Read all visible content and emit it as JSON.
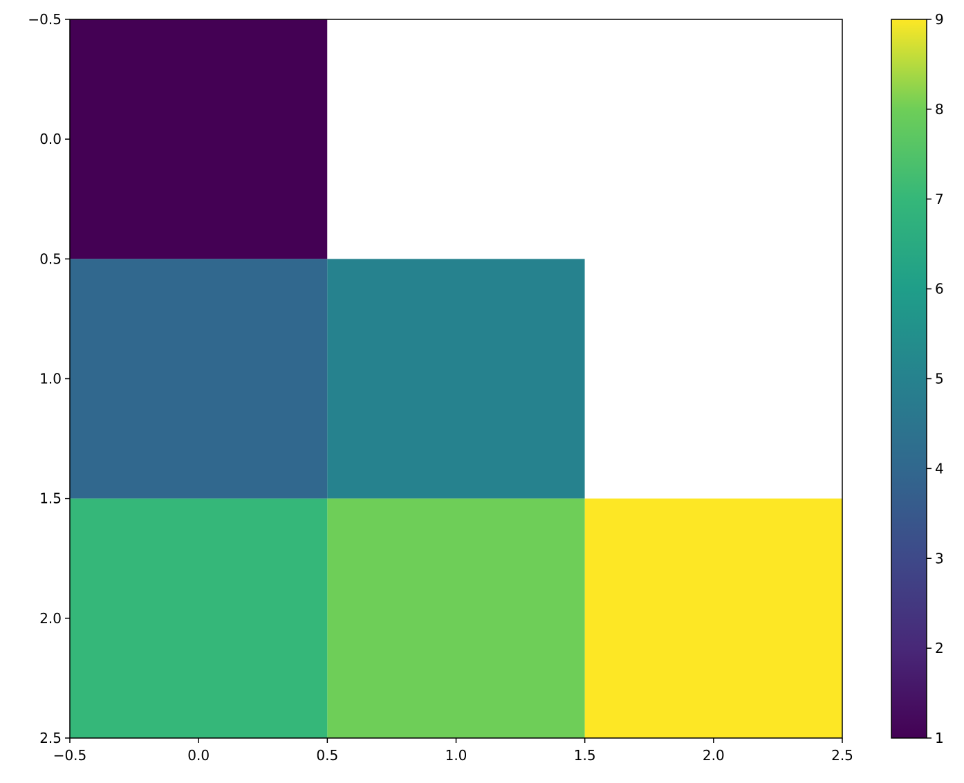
{
  "chart_data": {
    "type": "heatmap",
    "title": "",
    "xlabel": "",
    "ylabel": "",
    "values": [
      [
        1,
        null,
        null
      ],
      [
        4,
        5,
        null
      ],
      [
        7,
        8,
        9
      ]
    ],
    "xlim": [
      -0.5,
      2.5
    ],
    "ylim": [
      2.5,
      -0.5
    ],
    "xticks": [
      "−0.5",
      "0.0",
      "0.5",
      "1.0",
      "1.5",
      "2.0",
      "2.5"
    ],
    "yticks": [
      "−0.5",
      "0.0",
      "0.5",
      "1.0",
      "1.5",
      "2.0",
      "2.5"
    ],
    "colormap": "viridis",
    "missing_color": "#ffffff",
    "colorbar": {
      "range": [
        1,
        9
      ],
      "ticks": [
        "1",
        "2",
        "3",
        "4",
        "5",
        "6",
        "7",
        "8",
        "9"
      ]
    },
    "grid": false
  }
}
